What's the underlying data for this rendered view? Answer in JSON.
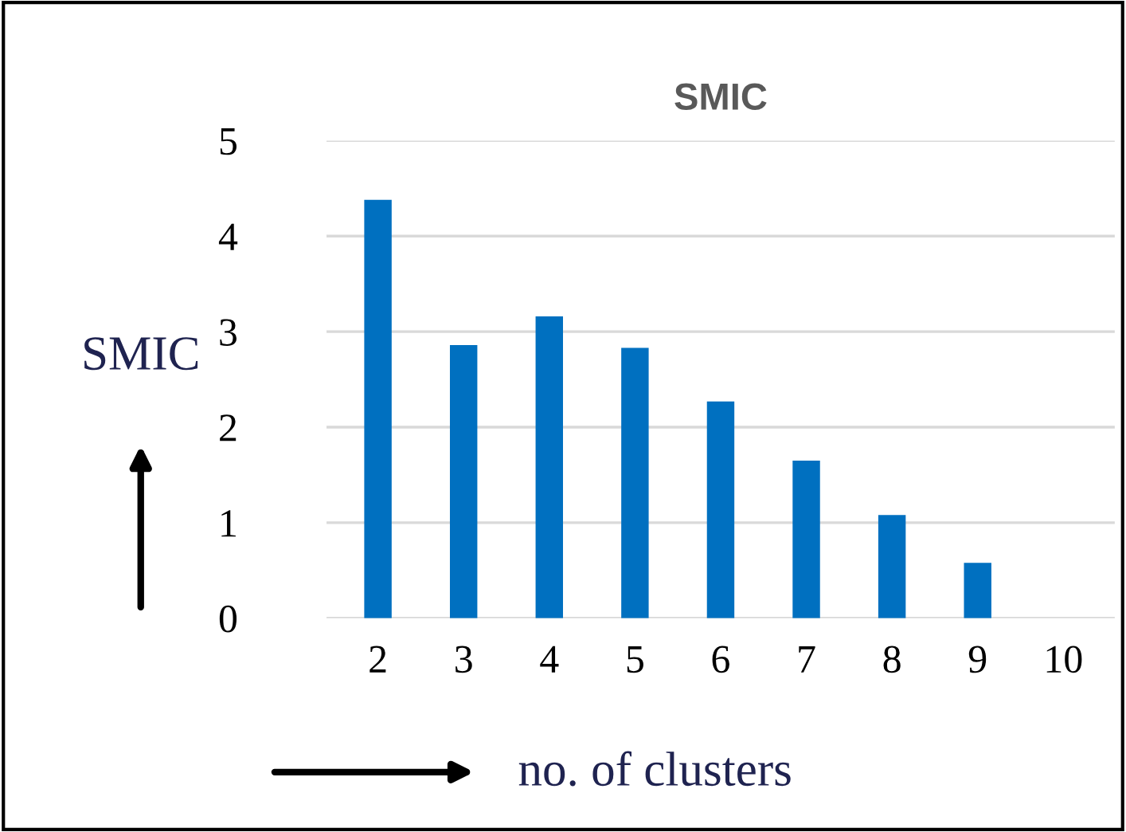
{
  "chart_data": {
    "type": "bar",
    "title": "SMIC",
    "xlabel": "no. of clusters",
    "ylabel": "SMIC",
    "categories": [
      "2",
      "3",
      "4",
      "5",
      "6",
      "7",
      "8",
      "9",
      "10"
    ],
    "values": [
      4.38,
      2.86,
      3.16,
      2.83,
      2.27,
      1.65,
      1.08,
      0.58,
      0
    ],
    "color": "#0070c0",
    "ylim": [
      0,
      5
    ],
    "yticks": [
      0,
      1,
      2,
      3,
      4,
      5
    ],
    "grid": "y"
  }
}
